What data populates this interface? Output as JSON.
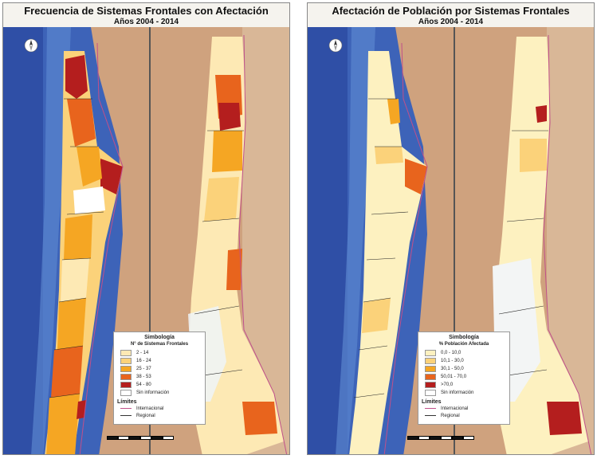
{
  "left_map": {
    "title": "Frecuencia de Sistemas Frontales con Afectación",
    "subtitle": "Años 2004 - 2014",
    "legend": {
      "title": "Simbología",
      "subtitle": "N° de Sistemas Frontales",
      "classes": [
        {
          "label": "2 - 14",
          "color": "#fde9b4"
        },
        {
          "label": "16 - 24",
          "color": "#fbd27a"
        },
        {
          "label": "25 - 37",
          "color": "#f5a623"
        },
        {
          "label": "38 - 53",
          "color": "#e8641d"
        },
        {
          "label": "54 - 80",
          "color": "#b41e1e"
        },
        {
          "label": "Sin información",
          "color": "#ffffff"
        }
      ],
      "limits_title": "Límites",
      "limits": [
        "Internacional",
        "Regional"
      ]
    }
  },
  "right_map": {
    "title": "Afectación de Población por Sistemas Frontales",
    "subtitle": "Años 2004 - 2014",
    "legend": {
      "title": "Simbología",
      "subtitle": "% Población Afectada",
      "classes": [
        {
          "label": "0,0 - 10,0",
          "color": "#fdf1c0"
        },
        {
          "label": "10,1 - 30,0",
          "color": "#fbd27a"
        },
        {
          "label": "30,1 - 50,0",
          "color": "#f5a623"
        },
        {
          "label": "50,01 - 70,0",
          "color": "#e8641d"
        },
        {
          "label": ">70,0",
          "color": "#b41e1e"
        },
        {
          "label": "Sin información",
          "color": "#ffffff"
        }
      ],
      "limits_title": "Límites",
      "limits": [
        "Internacional",
        "Regional"
      ]
    }
  }
}
